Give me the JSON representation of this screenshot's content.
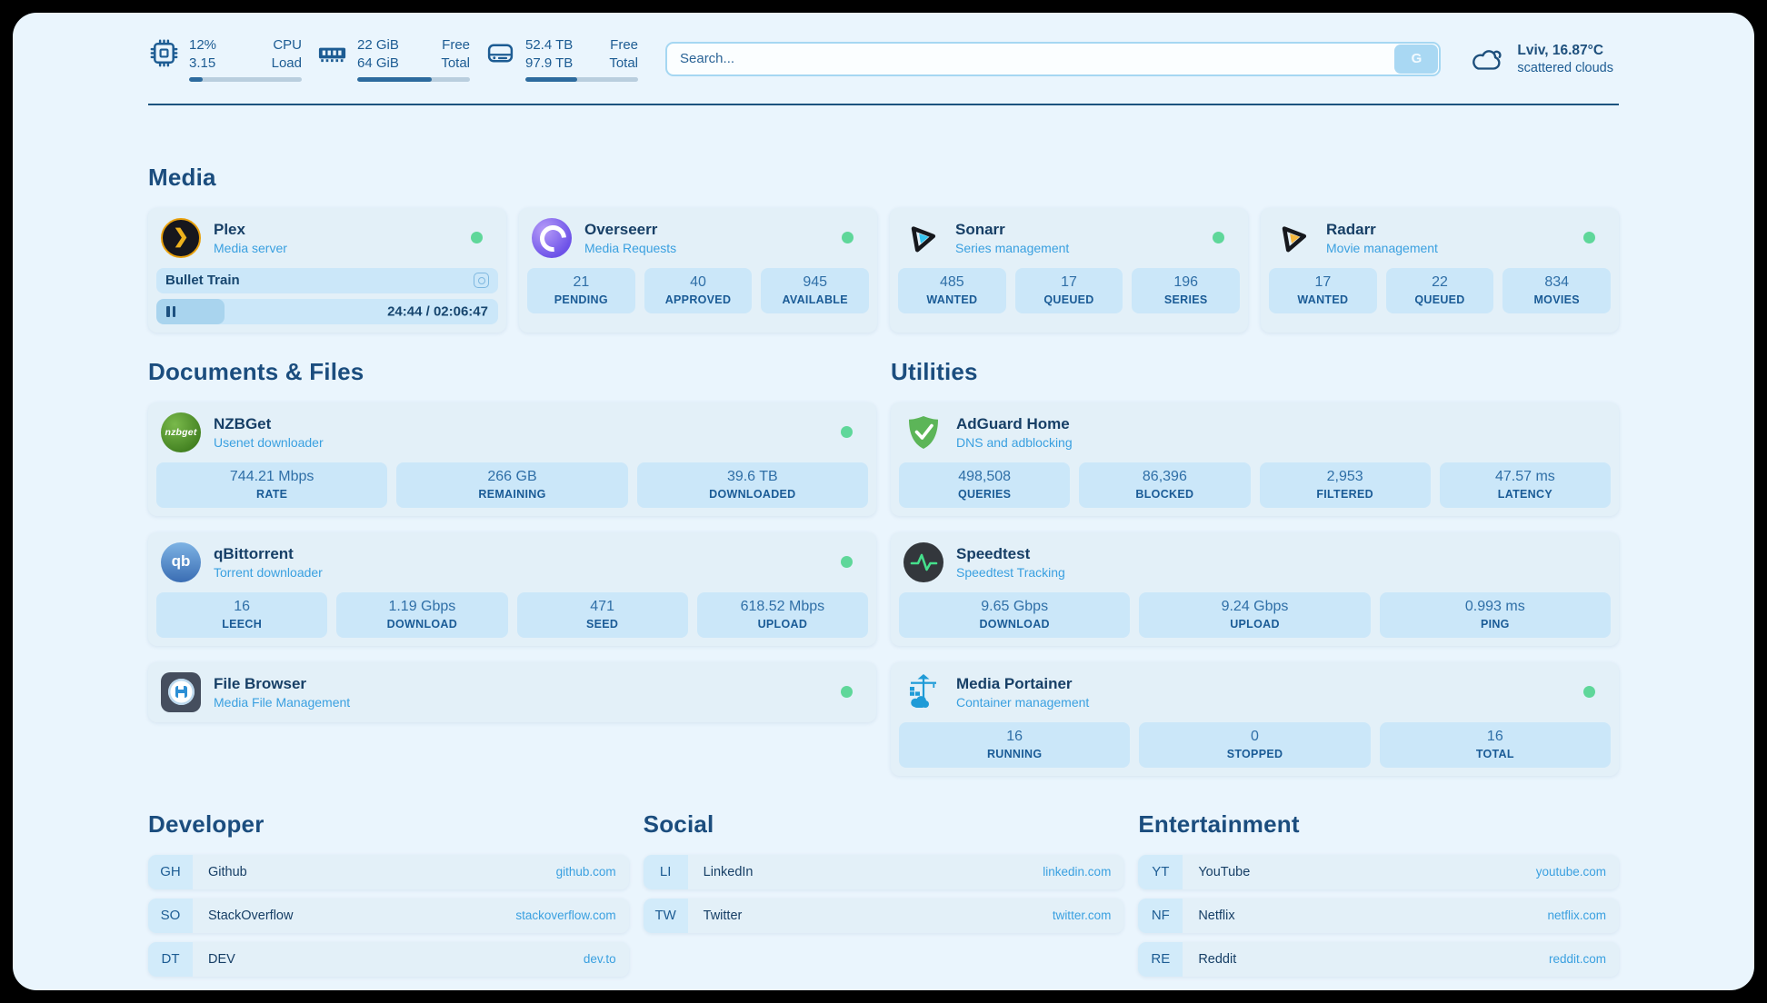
{
  "theme": {
    "page_background": "#eaf5fd",
    "card_background": "#e3f0f8",
    "pill_background": "#cbe7f9",
    "navy_text": "#1b4d7e",
    "accent_blue": "#3aa0e0",
    "status_ok_green": "#5fd79a"
  },
  "header": {
    "widgets": [
      {
        "icon": "cpu-icon",
        "values": [
          "12%",
          "3.15"
        ],
        "labels": [
          "CPU",
          "Load"
        ],
        "progress_percent": 12
      },
      {
        "icon": "memory-icon",
        "values": [
          "22 GiB",
          "64 GiB"
        ],
        "labels": [
          "Free",
          "Total"
        ],
        "progress_percent": 66
      },
      {
        "icon": "disk-icon",
        "values": [
          "52.4 TB",
          "97.9 TB"
        ],
        "labels": [
          "Free",
          "Total"
        ],
        "progress_percent": 46
      }
    ],
    "search": {
      "placeholder": "Search...",
      "engine_button": "G"
    },
    "weather": {
      "location": "Lviv, 16.87°C",
      "condition": "scattered clouds"
    }
  },
  "sections": {
    "media": {
      "title": "Media",
      "plex": {
        "name": "Plex",
        "description": "Media server",
        "status": "online",
        "now_playing": {
          "title": "Bullet Train",
          "time": "24:44 / 02:06:47",
          "progress_percent": 20
        }
      },
      "overseerr": {
        "name": "Overseerr",
        "description": "Media Requests",
        "status": "online",
        "stats": [
          {
            "value": "21",
            "label": "PENDING"
          },
          {
            "value": "40",
            "label": "APPROVED"
          },
          {
            "value": "945",
            "label": "AVAILABLE"
          }
        ]
      },
      "sonarr": {
        "name": "Sonarr",
        "description": "Series management",
        "status": "online",
        "stats": [
          {
            "value": "485",
            "label": "WANTED"
          },
          {
            "value": "17",
            "label": "QUEUED"
          },
          {
            "value": "196",
            "label": "SERIES"
          }
        ]
      },
      "radarr": {
        "name": "Radarr",
        "description": "Movie management",
        "status": "online",
        "stats": [
          {
            "value": "17",
            "label": "WANTED"
          },
          {
            "value": "22",
            "label": "QUEUED"
          },
          {
            "value": "834",
            "label": "MOVIES"
          }
        ]
      }
    },
    "documents": {
      "title": "Documents & Files",
      "nzbget": {
        "name": "NZBGet",
        "description": "Usenet downloader",
        "status": "online",
        "stats": [
          {
            "value": "744.21 Mbps",
            "label": "RATE"
          },
          {
            "value": "266 GB",
            "label": "REMAINING"
          },
          {
            "value": "39.6 TB",
            "label": "DOWNLOADED"
          }
        ]
      },
      "qbittorrent": {
        "name": "qBittorrent",
        "description": "Torrent downloader",
        "status": "online",
        "stats": [
          {
            "value": "16",
            "label": "LEECH"
          },
          {
            "value": "1.19 Gbps",
            "label": "DOWNLOAD"
          },
          {
            "value": "471",
            "label": "SEED"
          },
          {
            "value": "618.52 Mbps",
            "label": "UPLOAD"
          }
        ]
      },
      "filebrowser": {
        "name": "File Browser",
        "description": "Media File Management",
        "status": "online"
      }
    },
    "utilities": {
      "title": "Utilities",
      "adguard": {
        "name": "AdGuard Home",
        "description": "DNS and adblocking",
        "stats": [
          {
            "value": "498,508",
            "label": "QUERIES"
          },
          {
            "value": "86,396",
            "label": "BLOCKED"
          },
          {
            "value": "2,953",
            "label": "FILTERED"
          },
          {
            "value": "47.57 ms",
            "label": "LATENCY"
          }
        ]
      },
      "speedtest": {
        "name": "Speedtest",
        "description": "Speedtest Tracking",
        "stats": [
          {
            "value": "9.65 Gbps",
            "label": "DOWNLOAD"
          },
          {
            "value": "9.24 Gbps",
            "label": "UPLOAD"
          },
          {
            "value": "0.993 ms",
            "label": "PING"
          }
        ]
      },
      "portainer": {
        "name": "Media Portainer",
        "description": "Container management",
        "status": "online",
        "stats": [
          {
            "value": "16",
            "label": "RUNNING"
          },
          {
            "value": "0",
            "label": "STOPPED"
          },
          {
            "value": "16",
            "label": "TOTAL"
          }
        ]
      }
    },
    "bookmarks": [
      {
        "title": "Developer",
        "items": [
          {
            "abbr": "GH",
            "name": "Github",
            "url": "github.com"
          },
          {
            "abbr": "SO",
            "name": "StackOverflow",
            "url": "stackoverflow.com"
          },
          {
            "abbr": "DT",
            "name": "DEV",
            "url": "dev.to"
          }
        ]
      },
      {
        "title": "Social",
        "items": [
          {
            "abbr": "LI",
            "name": "LinkedIn",
            "url": "linkedin.com"
          },
          {
            "abbr": "TW",
            "name": "Twitter",
            "url": "twitter.com"
          }
        ]
      },
      {
        "title": "Entertainment",
        "items": [
          {
            "abbr": "YT",
            "name": "YouTube",
            "url": "youtube.com"
          },
          {
            "abbr": "NF",
            "name": "Netflix",
            "url": "netflix.com"
          },
          {
            "abbr": "RE",
            "name": "Reddit",
            "url": "reddit.com"
          }
        ]
      }
    ]
  }
}
